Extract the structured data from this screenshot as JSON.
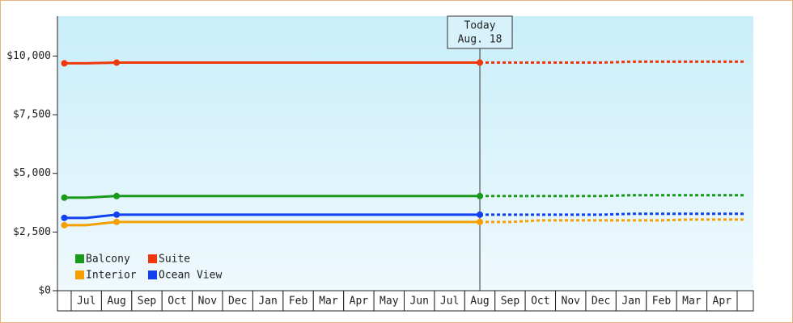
{
  "chart_data": {
    "type": "line",
    "categories": [
      null,
      "Jul",
      "Aug",
      "Sep",
      "Oct",
      "Nov",
      "Dec",
      "Jan",
      "Feb",
      "Mar",
      "Apr",
      "May",
      "Jun",
      "Jul",
      "Aug",
      "Sep",
      "Oct",
      "Nov",
      "Dec",
      "Jan",
      "Feb",
      "Mar",
      "Apr",
      null
    ],
    "series": [
      {
        "name": "Balcony",
        "color": "#1a9a1a",
        "values": [
          3966,
          3966,
          4034,
          4034,
          4034,
          4034,
          4034,
          4034,
          4034,
          4034,
          4034,
          4034,
          4034,
          4034,
          4034,
          4034,
          4034,
          4034,
          4034,
          4069,
          4069,
          4069,
          4069,
          4069
        ]
      },
      {
        "name": "Suite",
        "color": "#f0380c",
        "values": [
          9690,
          9690,
          9720,
          9720,
          9720,
          9720,
          9720,
          9720,
          9720,
          9720,
          9720,
          9720,
          9720,
          9720,
          9720,
          9720,
          9720,
          9720,
          9720,
          9759,
          9759,
          9759,
          9759,
          9759
        ]
      },
      {
        "name": "Interior",
        "color": "#f5a000",
        "values": [
          2793,
          2793,
          2931,
          2931,
          2931,
          2931,
          2931,
          2931,
          2931,
          2931,
          2931,
          2931,
          2931,
          2931,
          2931,
          2931,
          3000,
          3000,
          3000,
          3000,
          3000,
          3034,
          3034,
          3034
        ]
      },
      {
        "name": "Ocean View",
        "color": "#1040f0",
        "values": [
          3103,
          3103,
          3241,
          3241,
          3241,
          3241,
          3241,
          3241,
          3241,
          3241,
          3241,
          3241,
          3241,
          3241,
          3241,
          3241,
          3241,
          3241,
          3241,
          3276,
          3276,
          3276,
          3276,
          3276
        ]
      }
    ],
    "today": {
      "lines": [
        "Today",
        "Aug. 18"
      ],
      "category_index": 14
    },
    "ylim": [
      0,
      11700
    ],
    "yticks": [
      {
        "value": 0,
        "label": "$0"
      },
      {
        "value": 2500,
        "label": "$2,500"
      },
      {
        "value": 5000,
        "label": "$5,000"
      },
      {
        "value": 7500,
        "label": "$7,500"
      },
      {
        "value": 10000,
        "label": "$10,000"
      }
    ]
  }
}
